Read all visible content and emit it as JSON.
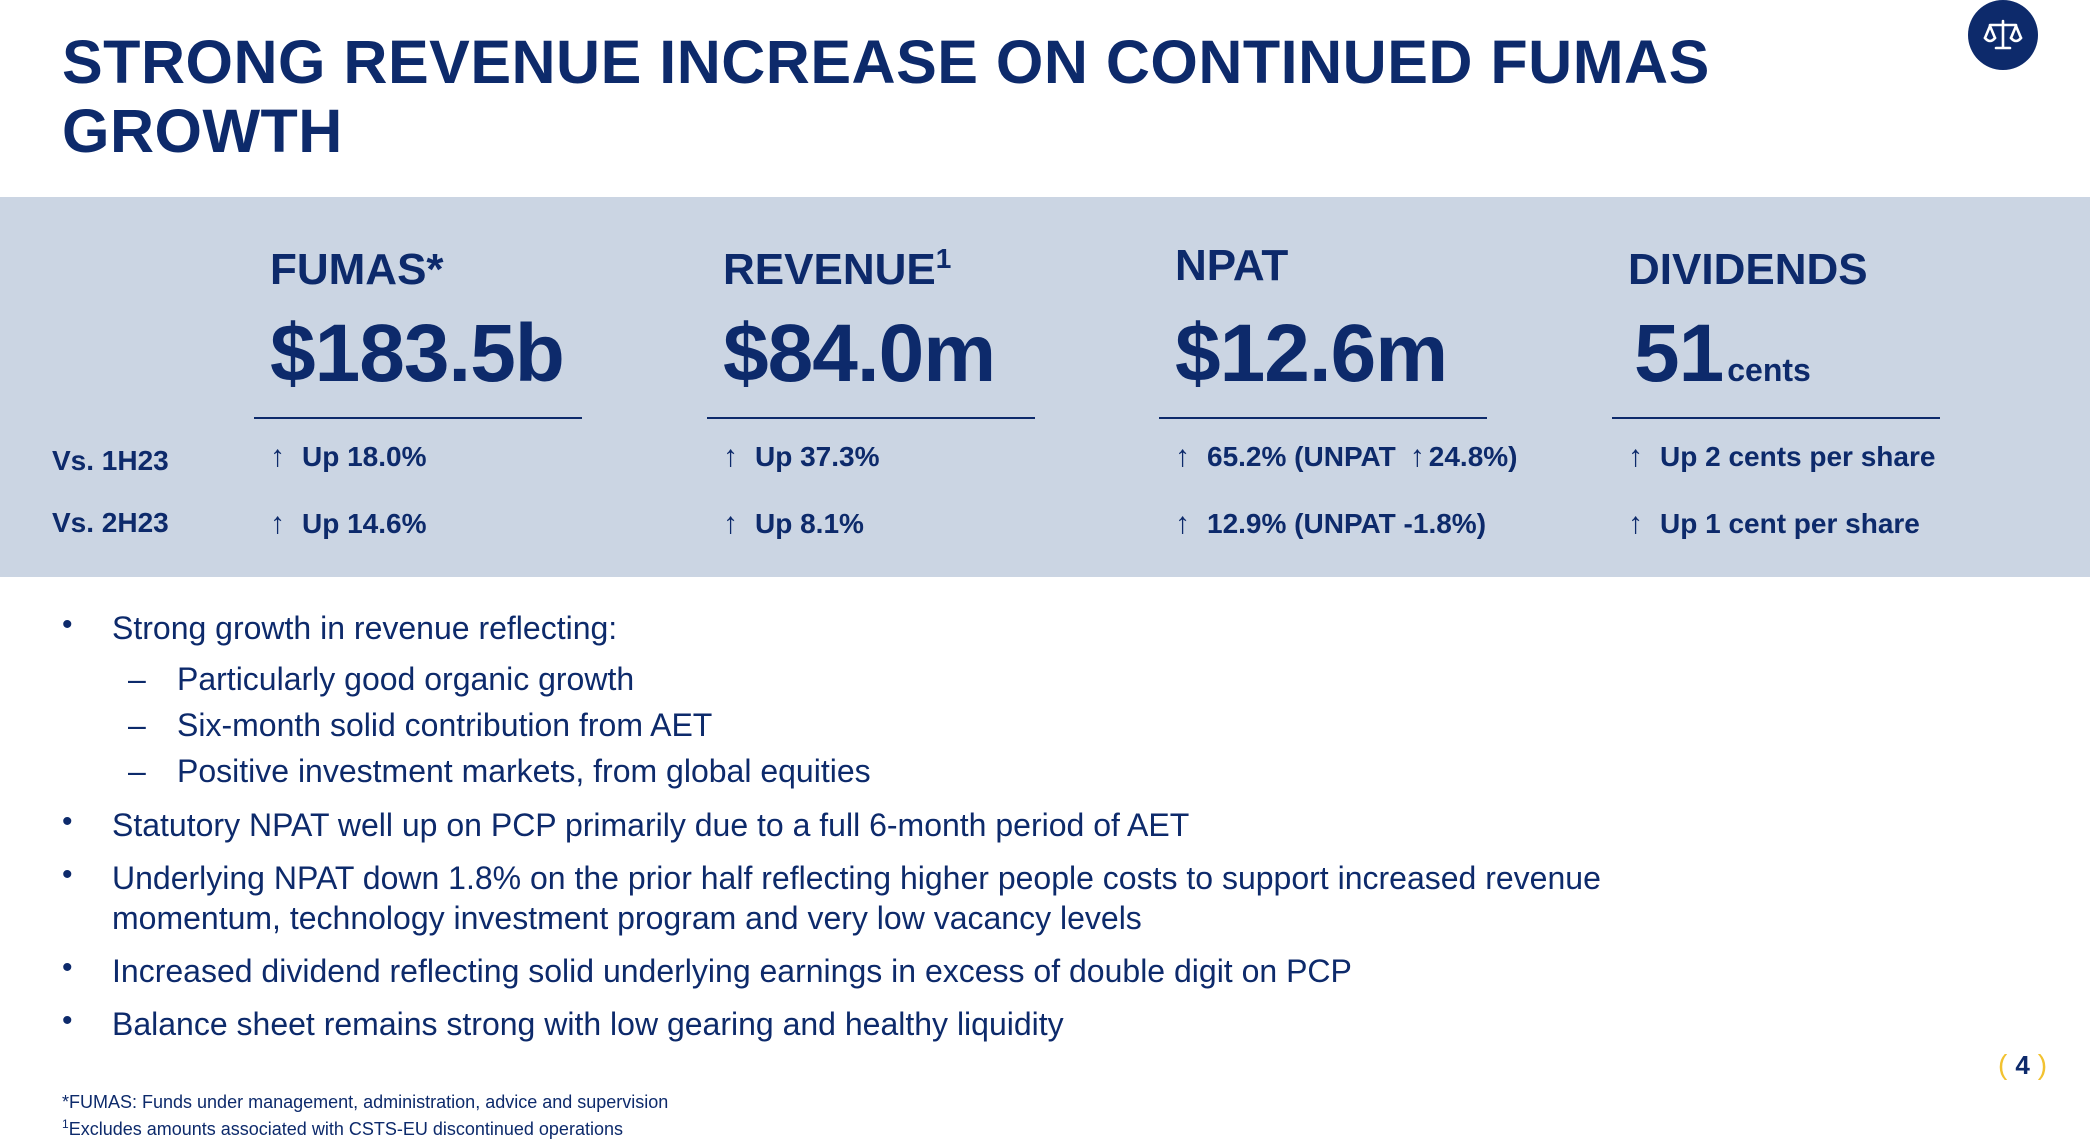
{
  "title": "STRONG REVENUE INCREASE ON CONTINUED FUMAS GROWTH",
  "logo_icon": "scales-of-justice-icon",
  "colors": {
    "primary": "#0d2a6b",
    "band": "#cbd5e3",
    "accent": "#f2c230"
  },
  "row_labels": [
    "Vs. 1H23",
    "Vs. 2H23"
  ],
  "metrics": [
    {
      "label": "FUMAS*",
      "sup": "",
      "value": "$183.5b",
      "unit": "",
      "vs_1h23": "Up 18.0%",
      "vs_2h23": "Up 14.6%"
    },
    {
      "label": "REVENUE",
      "sup": "1",
      "value": "$84.0m",
      "unit": "",
      "vs_1h23": "Up 37.3%",
      "vs_2h23": "Up 8.1%"
    },
    {
      "label": "NPAT",
      "sup": "",
      "value": "$12.6m",
      "unit": "",
      "vs_1h23_a": "65.2% (UNPAT",
      "vs_1h23_b": "24.8%)",
      "vs_2h23": "12.9% (UNPAT -1.8%)"
    },
    {
      "label": "DIVIDENDS",
      "sup": "",
      "value": "51",
      "unit": "cents",
      "vs_1h23": "Up 2 cents per share",
      "vs_2h23": "Up 1 cent per share"
    }
  ],
  "bullets": {
    "b1": "Strong growth in revenue reflecting:",
    "b1_sub": [
      "Particularly good organic growth",
      "Six-month solid contribution from AET",
      "Positive investment markets, from global equities"
    ],
    "b2": "Statutory NPAT well up on PCP primarily due to a full 6-month period of AET",
    "b3_line1": "Underlying NPAT down 1.8% on the prior half reflecting higher people costs to support increased revenue",
    "b3_line2": "momentum, technology investment program and very low vacancy levels",
    "b4": "Increased dividend reflecting solid underlying earnings in excess of double digit on PCP",
    "b5": "Balance sheet remains strong with low gearing and healthy liquidity"
  },
  "footnotes": {
    "f1": "*FUMAS: Funds under management, administration, advice and supervision",
    "f2_sup": "1",
    "f2": "Excludes amounts associated with CSTS-EU discontinued operations"
  },
  "page_number": "4"
}
